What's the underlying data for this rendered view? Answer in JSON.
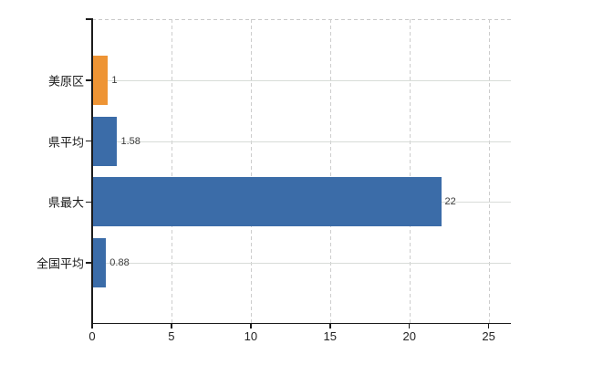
{
  "chart_data": {
    "type": "bar",
    "orientation": "horizontal",
    "title": "",
    "xlabel": "",
    "ylabel": "",
    "categories": [
      "美原区",
      "県平均",
      "県最大",
      "全国平均"
    ],
    "values": [
      1,
      1.58,
      22,
      0.88
    ],
    "value_labels": [
      "1",
      "1.58",
      "22",
      "0.88"
    ],
    "bar_colors": [
      "#ee9434",
      "#3b6ca8",
      "#3b6ca8",
      "#3b6ca8"
    ],
    "xlim": [
      0,
      26.4
    ],
    "x_ticks": [
      0,
      5,
      10,
      15,
      20,
      25
    ],
    "grid": {
      "vertical": "dashed",
      "horizontal": "solid",
      "top_border": "dashed"
    },
    "legend": "none"
  },
  "colors": {
    "bar_orange": "#ee9434",
    "bar_blue": "#3b6ca8",
    "gridline": "#d8d8d8",
    "axis": "#1b1b1b",
    "background": "#ffffff"
  }
}
